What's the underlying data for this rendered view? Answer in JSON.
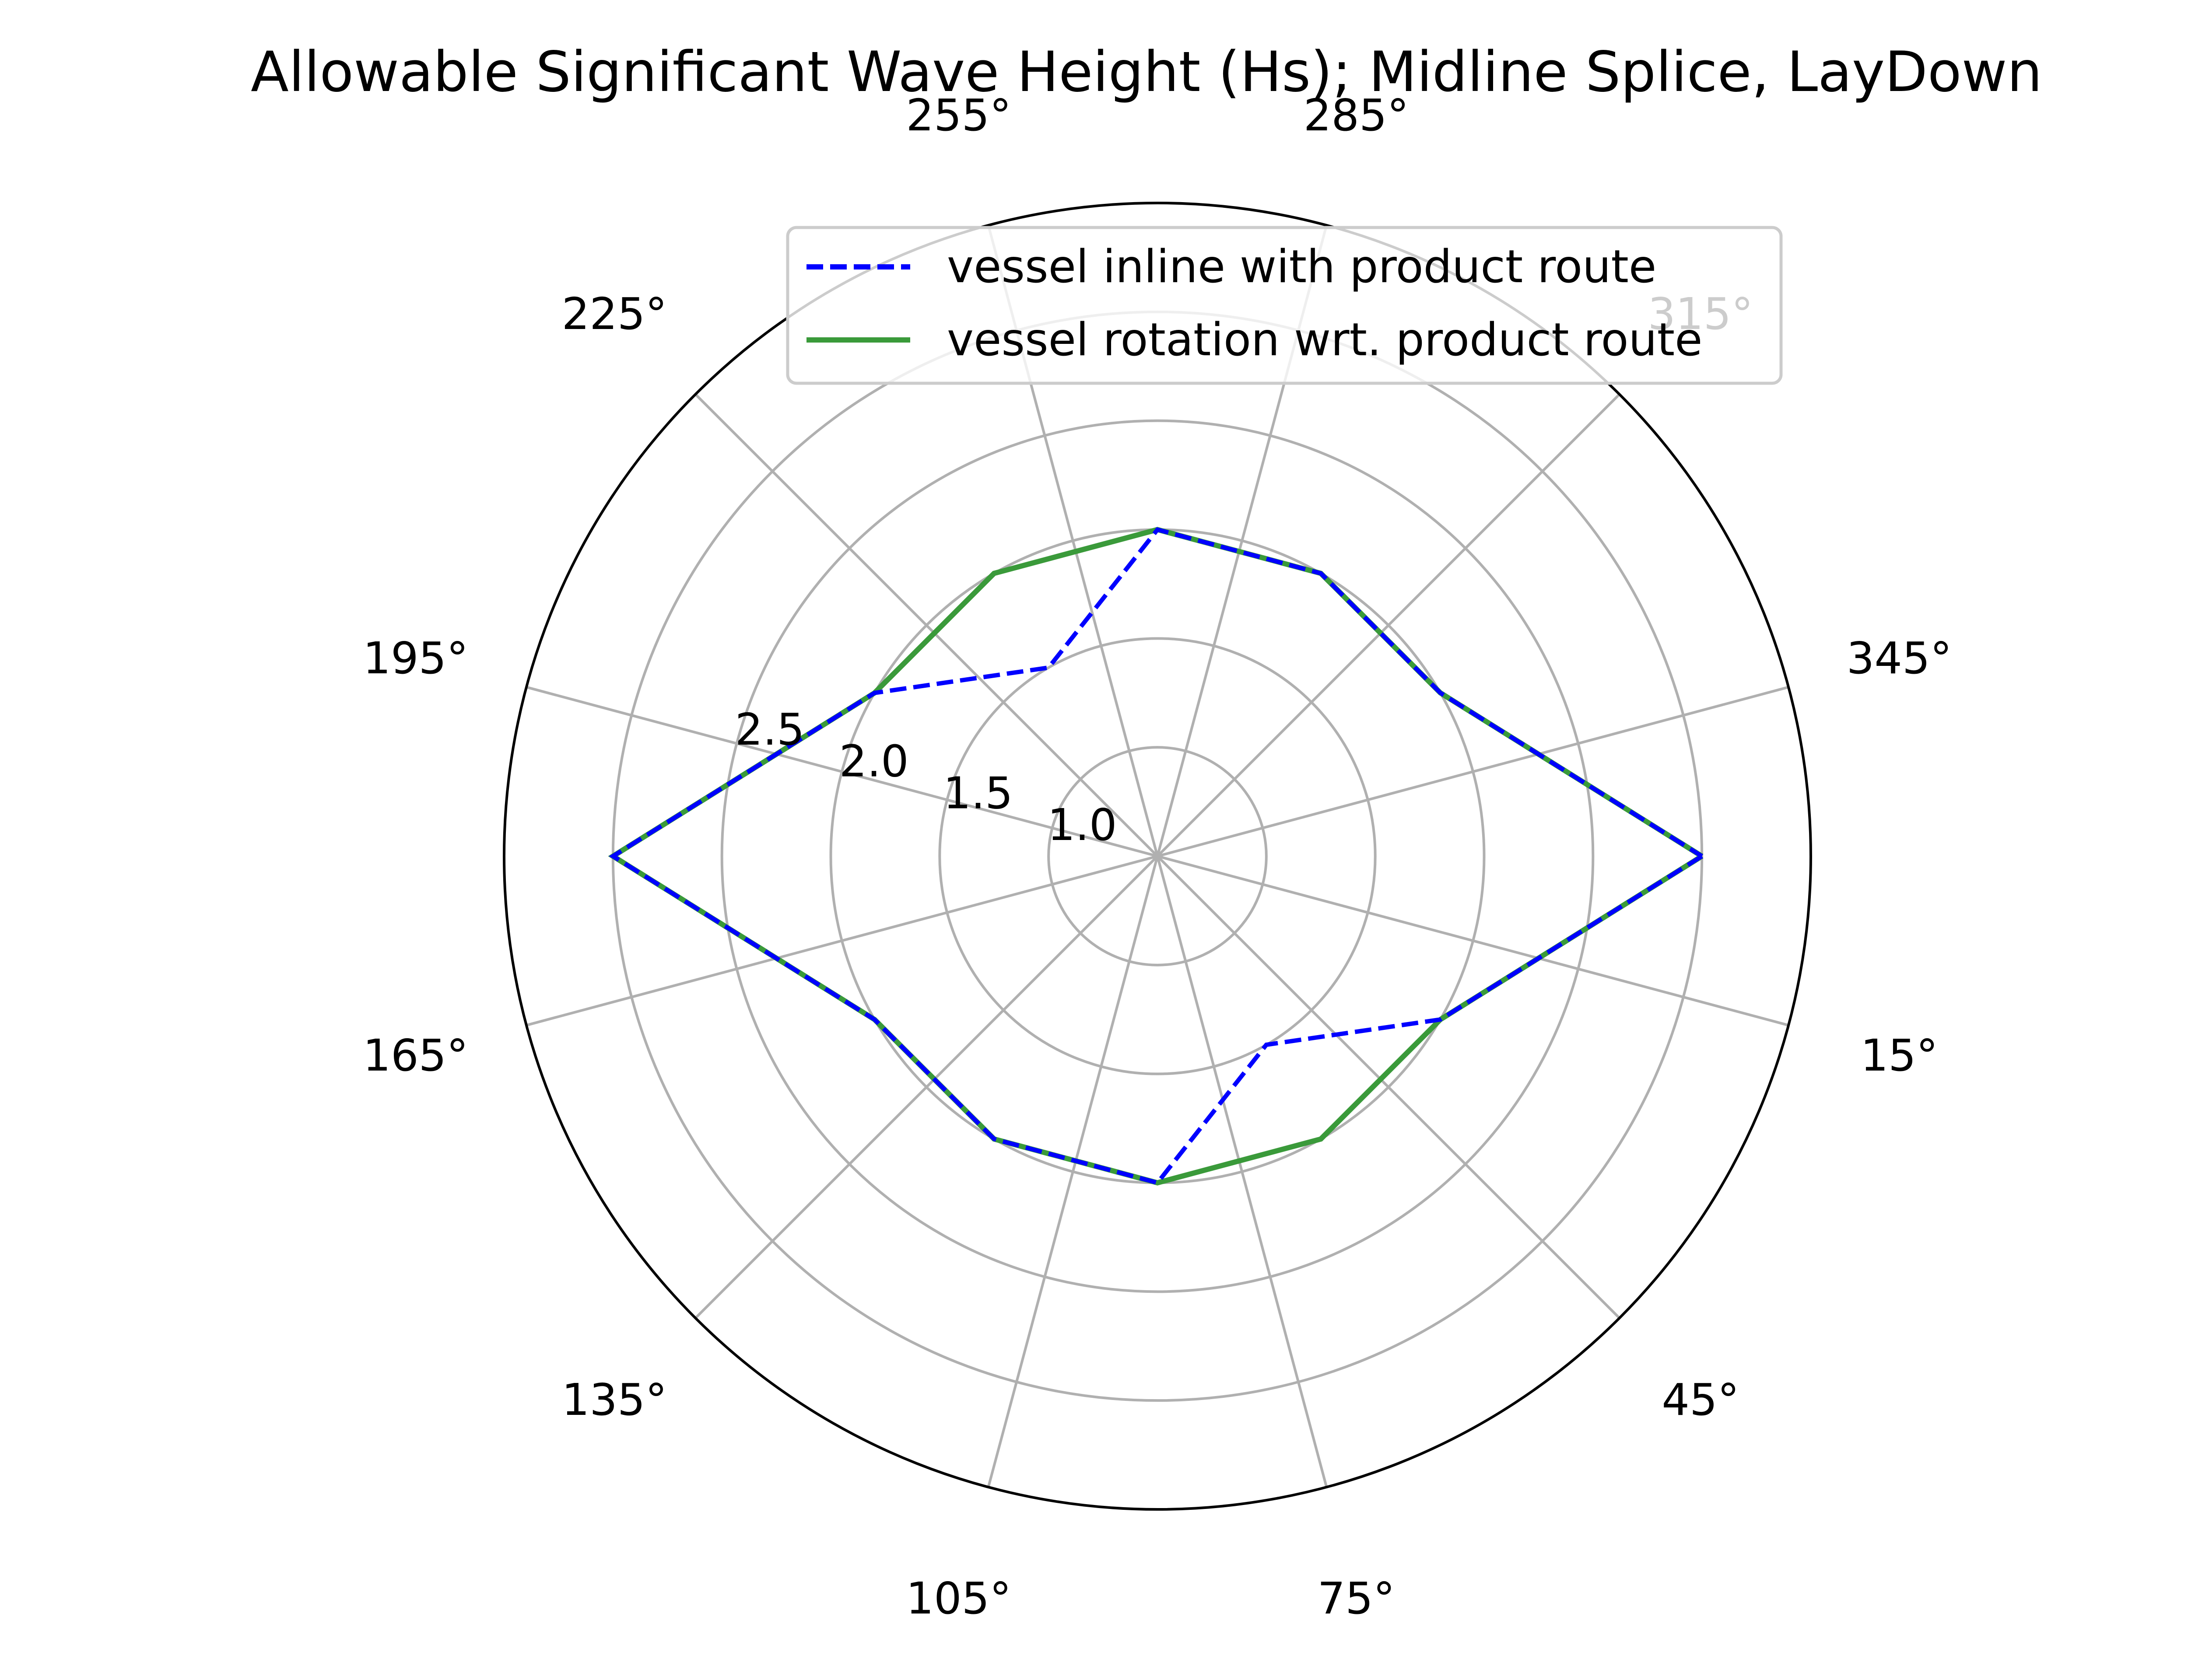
{
  "chart_data": {
    "type": "polar-line",
    "title": "Allowable Significant Wave Height (Hs); Midline Splice, LayDown",
    "theta_direction": "clockwise",
    "theta_zero": "east",
    "theta_ticks_deg": [
      165,
      135,
      105,
      75,
      45,
      15,
      345,
      315,
      285,
      255,
      225,
      195
    ],
    "theta_tick_labels": [
      "165°",
      "135°",
      "105°",
      "75°",
      "45°",
      "15°",
      "345°",
      "315°",
      "285°",
      "255°",
      "225°",
      "195°"
    ],
    "r_ticks": [
      1.0,
      1.5,
      2.0,
      2.5
    ],
    "r_tick_labels": [
      "1.0",
      "1.5",
      "2.0",
      "2.5"
    ],
    "r_tick_label_angle_deg": 22.5,
    "rlim": [
      0.5,
      3.5
    ],
    "grid": true,
    "legend_position": "upper-right",
    "theta_deg": [
      0,
      30,
      60,
      90,
      120,
      150,
      180,
      210,
      240,
      270,
      300,
      330,
      360
    ],
    "series": [
      {
        "name": "vessel inline with product route",
        "color": "#0000ff",
        "style": "dashed",
        "r": [
          3.0,
          2.0,
          1.5,
          2.0,
          2.0,
          2.0,
          3.0,
          2.0,
          1.5,
          2.0,
          2.0,
          2.0,
          3.0
        ]
      },
      {
        "name": "vessel rotation wrt. product route",
        "color": "#3a9a3a",
        "style": "solid",
        "r": [
          3.0,
          2.0,
          2.0,
          2.0,
          2.0,
          2.0,
          3.0,
          2.0,
          2.0,
          2.0,
          2.0,
          2.0,
          3.0
        ]
      }
    ]
  }
}
